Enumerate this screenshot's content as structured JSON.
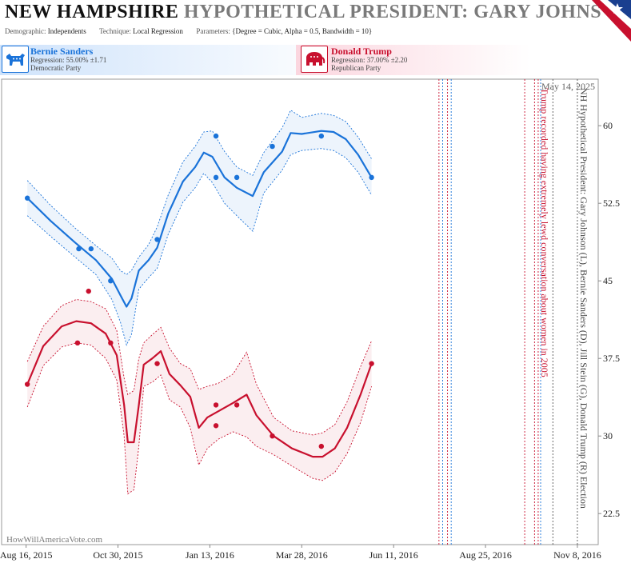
{
  "header": {
    "state": "NEW HAMPSHIRE",
    "title_rest": "HYPOTHETICAL PRESIDENT:  GARY JOHNSON",
    "params": {
      "demographic_label": "Demographic:",
      "demographic_value": "Independents",
      "technique_label": "Technique:",
      "technique_value": "Local Regression",
      "parameters_label": "Parameters:",
      "parameters_value": "{Degree = Cubic, Alpha = 0.5, Bandwidth = 10}"
    }
  },
  "candidates": {
    "dem": {
      "name": "Bernie Sanders",
      "regression": "Regression: 55.00% ±1.71",
      "party": "Democratic Party",
      "color": "#1a73d9"
    },
    "rep": {
      "name": "Donald Trump",
      "regression": "Regression: 37.00% ±2.20",
      "party": "Republican Party",
      "color": "#c8102e"
    }
  },
  "watermark": "HowWillAmericaVote.com",
  "chart_data": {
    "type": "line",
    "x_type": "date",
    "xlim": [
      "2015-07-27",
      "2016-11-25"
    ],
    "ylim": [
      19.5,
      64.5
    ],
    "x_ticks": [
      {
        "date": "2015-08-16",
        "label": "Aug 16, 2015"
      },
      {
        "date": "2015-10-30",
        "label": "Oct 30, 2015"
      },
      {
        "date": "2016-01-13",
        "label": "Jan 13, 2016"
      },
      {
        "date": "2016-03-28",
        "label": "Mar 28, 2016"
      },
      {
        "date": "2016-06-11",
        "label": "Jun 11, 2016"
      },
      {
        "date": "2016-08-25",
        "label": "Aug 25, 2016"
      },
      {
        "date": "2016-11-08",
        "label": "Nov 8, 2016"
      }
    ],
    "y_ticks": [
      {
        "value": 22.5,
        "label": "22.5"
      },
      {
        "value": 30,
        "label": "30"
      },
      {
        "value": 37.5,
        "label": "37.5"
      },
      {
        "value": 45,
        "label": "45"
      },
      {
        "value": 52.5,
        "label": "52.5"
      },
      {
        "value": 60,
        "label": "60"
      }
    ],
    "series": [
      {
        "name": "Bernie Sanders",
        "color": "#1a73d9",
        "fill": "rgba(26,115,217,0.08)",
        "points": [
          {
            "x": "2015-08-17",
            "y": 53.0
          },
          {
            "x": "2015-09-28",
            "y": 48.1
          },
          {
            "x": "2015-10-08",
            "y": 48.1
          },
          {
            "x": "2015-10-24",
            "y": 45.0
          },
          {
            "x": "2015-12-01",
            "y": 49.0
          },
          {
            "x": "2016-01-18",
            "y": 59.0
          },
          {
            "x": "2016-01-18",
            "y": 55.0
          },
          {
            "x": "2016-02-04",
            "y": 55.0
          },
          {
            "x": "2016-03-04",
            "y": 58.0
          },
          {
            "x": "2016-04-13",
            "y": 59.0
          },
          {
            "x": "2016-05-24",
            "y": 55.0
          }
        ],
        "trend": [
          {
            "x": "2015-08-17",
            "y": 53.0
          },
          {
            "x": "2015-09-05",
            "y": 50.8
          },
          {
            "x": "2015-09-25",
            "y": 48.7
          },
          {
            "x": "2015-10-12",
            "y": 47.0
          },
          {
            "x": "2015-10-25",
            "y": 45.2
          },
          {
            "x": "2015-11-01",
            "y": 43.6
          },
          {
            "x": "2015-11-06",
            "y": 42.5
          },
          {
            "x": "2015-11-10",
            "y": 43.3
          },
          {
            "x": "2015-11-16",
            "y": 46.0
          },
          {
            "x": "2015-11-24",
            "y": 47.0
          },
          {
            "x": "2015-12-01",
            "y": 48.2
          },
          {
            "x": "2015-12-10",
            "y": 51.5
          },
          {
            "x": "2015-12-22",
            "y": 54.6
          },
          {
            "x": "2016-01-01",
            "y": 56.0
          },
          {
            "x": "2016-01-08",
            "y": 57.4
          },
          {
            "x": "2016-01-15",
            "y": 57.0
          },
          {
            "x": "2016-01-25",
            "y": 55.0
          },
          {
            "x": "2016-02-04",
            "y": 54.0
          },
          {
            "x": "2016-02-17",
            "y": 53.2
          },
          {
            "x": "2016-02-26",
            "y": 55.5
          },
          {
            "x": "2016-03-12",
            "y": 57.5
          },
          {
            "x": "2016-03-19",
            "y": 59.3
          },
          {
            "x": "2016-03-28",
            "y": 59.2
          },
          {
            "x": "2016-04-13",
            "y": 59.5
          },
          {
            "x": "2016-04-23",
            "y": 59.4
          },
          {
            "x": "2016-05-03",
            "y": 58.7
          },
          {
            "x": "2016-05-13",
            "y": 57.2
          },
          {
            "x": "2016-05-24",
            "y": 55.0
          }
        ],
        "upper": [
          {
            "x": "2015-08-17",
            "y": 54.7
          },
          {
            "x": "2015-09-05",
            "y": 52.3
          },
          {
            "x": "2015-09-25",
            "y": 50.1
          },
          {
            "x": "2015-10-12",
            "y": 48.4
          },
          {
            "x": "2015-10-25",
            "y": 47.2
          },
          {
            "x": "2015-11-01",
            "y": 46.0
          },
          {
            "x": "2015-11-06",
            "y": 45.6
          },
          {
            "x": "2015-11-10",
            "y": 46.0
          },
          {
            "x": "2015-11-16",
            "y": 47.3
          },
          {
            "x": "2015-11-24",
            "y": 48.5
          },
          {
            "x": "2015-12-01",
            "y": 50.2
          },
          {
            "x": "2015-12-10",
            "y": 53.3
          },
          {
            "x": "2015-12-22",
            "y": 56.5
          },
          {
            "x": "2016-01-01",
            "y": 58.0
          },
          {
            "x": "2016-01-08",
            "y": 59.4
          },
          {
            "x": "2016-01-15",
            "y": 59.5
          },
          {
            "x": "2016-01-25",
            "y": 57.5
          },
          {
            "x": "2016-02-04",
            "y": 56.0
          },
          {
            "x": "2016-02-17",
            "y": 55.2
          },
          {
            "x": "2016-02-26",
            "y": 57.4
          },
          {
            "x": "2016-03-12",
            "y": 59.8
          },
          {
            "x": "2016-03-19",
            "y": 61.5
          },
          {
            "x": "2016-03-28",
            "y": 60.8
          },
          {
            "x": "2016-04-13",
            "y": 61.2
          },
          {
            "x": "2016-04-23",
            "y": 61.0
          },
          {
            "x": "2016-05-03",
            "y": 60.4
          },
          {
            "x": "2016-05-13",
            "y": 58.9
          },
          {
            "x": "2016-05-24",
            "y": 56.8
          }
        ],
        "lower": [
          {
            "x": "2015-08-17",
            "y": 51.3
          },
          {
            "x": "2015-09-05",
            "y": 49.3
          },
          {
            "x": "2015-09-25",
            "y": 47.3
          },
          {
            "x": "2015-10-12",
            "y": 45.6
          },
          {
            "x": "2015-10-25",
            "y": 43.2
          },
          {
            "x": "2015-11-01",
            "y": 41.0
          },
          {
            "x": "2015-11-06",
            "y": 38.8
          },
          {
            "x": "2015-11-10",
            "y": 39.8
          },
          {
            "x": "2015-11-16",
            "y": 44.2
          },
          {
            "x": "2015-11-24",
            "y": 45.3
          },
          {
            "x": "2015-12-01",
            "y": 46.2
          },
          {
            "x": "2015-12-10",
            "y": 49.5
          },
          {
            "x": "2015-12-22",
            "y": 52.6
          },
          {
            "x": "2016-01-01",
            "y": 54.0
          },
          {
            "x": "2016-01-08",
            "y": 55.4
          },
          {
            "x": "2016-01-15",
            "y": 54.5
          },
          {
            "x": "2016-01-25",
            "y": 52.5
          },
          {
            "x": "2016-02-04",
            "y": 51.3
          },
          {
            "x": "2016-02-17",
            "y": 49.8
          },
          {
            "x": "2016-02-26",
            "y": 53.5
          },
          {
            "x": "2016-03-12",
            "y": 55.7
          },
          {
            "x": "2016-03-19",
            "y": 57.2
          },
          {
            "x": "2016-03-28",
            "y": 57.6
          },
          {
            "x": "2016-04-13",
            "y": 57.8
          },
          {
            "x": "2016-04-23",
            "y": 57.6
          },
          {
            "x": "2016-05-03",
            "y": 56.9
          },
          {
            "x": "2016-05-13",
            "y": 55.5
          },
          {
            "x": "2016-05-24",
            "y": 53.3
          }
        ]
      },
      {
        "name": "Donald Trump",
        "color": "#c8102e",
        "fill": "rgba(200,16,46,0.07)",
        "points": [
          {
            "x": "2015-08-17",
            "y": 35.0
          },
          {
            "x": "2015-09-27",
            "y": 39.0
          },
          {
            "x": "2015-10-06",
            "y": 44.0
          },
          {
            "x": "2015-10-24",
            "y": 39.0
          },
          {
            "x": "2015-12-01",
            "y": 37.0
          },
          {
            "x": "2016-01-18",
            "y": 33.0
          },
          {
            "x": "2016-01-18",
            "y": 31.0
          },
          {
            "x": "2016-02-04",
            "y": 33.0
          },
          {
            "x": "2016-03-04",
            "y": 30.0
          },
          {
            "x": "2016-04-13",
            "y": 29.0
          },
          {
            "x": "2016-05-24",
            "y": 37.0
          }
        ],
        "trend": [
          {
            "x": "2015-08-17",
            "y": 35.0
          },
          {
            "x": "2015-08-30",
            "y": 38.7
          },
          {
            "x": "2015-09-14",
            "y": 40.6
          },
          {
            "x": "2015-09-26",
            "y": 41.1
          },
          {
            "x": "2015-10-08",
            "y": 40.9
          },
          {
            "x": "2015-10-20",
            "y": 39.9
          },
          {
            "x": "2015-10-29",
            "y": 37.8
          },
          {
            "x": "2015-11-04",
            "y": 33.0
          },
          {
            "x": "2015-11-07",
            "y": 29.4
          },
          {
            "x": "2015-11-12",
            "y": 29.4
          },
          {
            "x": "2015-11-16",
            "y": 33.0
          },
          {
            "x": "2015-11-20",
            "y": 36.9
          },
          {
            "x": "2015-11-27",
            "y": 37.5
          },
          {
            "x": "2015-12-04",
            "y": 38.2
          },
          {
            "x": "2015-12-11",
            "y": 36.0
          },
          {
            "x": "2015-12-20",
            "y": 34.9
          },
          {
            "x": "2015-12-28",
            "y": 33.8
          },
          {
            "x": "2016-01-04",
            "y": 30.8
          },
          {
            "x": "2016-01-11",
            "y": 31.8
          },
          {
            "x": "2016-01-20",
            "y": 32.4
          },
          {
            "x": "2016-02-01",
            "y": 33.2
          },
          {
            "x": "2016-02-12",
            "y": 34.0
          },
          {
            "x": "2016-02-20",
            "y": 32.0
          },
          {
            "x": "2016-03-05",
            "y": 30.0
          },
          {
            "x": "2016-03-20",
            "y": 28.8
          },
          {
            "x": "2016-04-06",
            "y": 28.0
          },
          {
            "x": "2016-04-14",
            "y": 28.0
          },
          {
            "x": "2016-04-24",
            "y": 28.8
          },
          {
            "x": "2016-05-04",
            "y": 30.8
          },
          {
            "x": "2016-05-15",
            "y": 34.0
          },
          {
            "x": "2016-05-24",
            "y": 37.0
          }
        ],
        "upper": [
          {
            "x": "2015-08-17",
            "y": 37.2
          },
          {
            "x": "2015-08-30",
            "y": 40.6
          },
          {
            "x": "2015-09-14",
            "y": 42.6
          },
          {
            "x": "2015-09-26",
            "y": 43.2
          },
          {
            "x": "2015-10-08",
            "y": 43.0
          },
          {
            "x": "2015-10-20",
            "y": 42.3
          },
          {
            "x": "2015-10-29",
            "y": 40.2
          },
          {
            "x": "2015-11-04",
            "y": 35.6
          },
          {
            "x": "2015-11-07",
            "y": 34.0
          },
          {
            "x": "2015-11-12",
            "y": 34.4
          },
          {
            "x": "2015-11-16",
            "y": 37.5
          },
          {
            "x": "2015-11-20",
            "y": 39.0
          },
          {
            "x": "2015-11-27",
            "y": 39.8
          },
          {
            "x": "2015-12-04",
            "y": 40.5
          },
          {
            "x": "2015-12-11",
            "y": 38.5
          },
          {
            "x": "2015-12-20",
            "y": 37.0
          },
          {
            "x": "2015-12-28",
            "y": 36.5
          },
          {
            "x": "2016-01-04",
            "y": 34.5
          },
          {
            "x": "2016-01-11",
            "y": 34.8
          },
          {
            "x": "2016-01-20",
            "y": 35.1
          },
          {
            "x": "2016-02-01",
            "y": 36.0
          },
          {
            "x": "2016-02-12",
            "y": 38.1
          },
          {
            "x": "2016-02-20",
            "y": 35.0
          },
          {
            "x": "2016-03-05",
            "y": 31.8
          },
          {
            "x": "2016-03-20",
            "y": 30.5
          },
          {
            "x": "2016-04-06",
            "y": 30.1
          },
          {
            "x": "2016-04-14",
            "y": 30.3
          },
          {
            "x": "2016-04-24",
            "y": 31.1
          },
          {
            "x": "2016-05-04",
            "y": 33.3
          },
          {
            "x": "2016-05-15",
            "y": 36.7
          },
          {
            "x": "2016-05-24",
            "y": 39.2
          }
        ],
        "lower": [
          {
            "x": "2015-08-17",
            "y": 32.8
          },
          {
            "x": "2015-08-30",
            "y": 36.8
          },
          {
            "x": "2015-09-14",
            "y": 38.6
          },
          {
            "x": "2015-09-26",
            "y": 39.0
          },
          {
            "x": "2015-10-08",
            "y": 38.8
          },
          {
            "x": "2015-10-20",
            "y": 37.5
          },
          {
            "x": "2015-10-29",
            "y": 35.4
          },
          {
            "x": "2015-11-04",
            "y": 30.0
          },
          {
            "x": "2015-11-07",
            "y": 24.4
          },
          {
            "x": "2015-11-12",
            "y": 24.8
          },
          {
            "x": "2015-11-16",
            "y": 29.0
          },
          {
            "x": "2015-11-20",
            "y": 34.8
          },
          {
            "x": "2015-11-27",
            "y": 35.2
          },
          {
            "x": "2015-12-04",
            "y": 35.9
          },
          {
            "x": "2015-12-11",
            "y": 33.5
          },
          {
            "x": "2015-12-20",
            "y": 32.8
          },
          {
            "x": "2015-12-28",
            "y": 30.8
          },
          {
            "x": "2016-01-04",
            "y": 27.2
          },
          {
            "x": "2016-01-11",
            "y": 28.8
          },
          {
            "x": "2016-01-20",
            "y": 29.7
          },
          {
            "x": "2016-02-01",
            "y": 30.4
          },
          {
            "x": "2016-02-12",
            "y": 29.9
          },
          {
            "x": "2016-02-20",
            "y": 29.0
          },
          {
            "x": "2016-03-05",
            "y": 28.2
          },
          {
            "x": "2016-03-20",
            "y": 27.1
          },
          {
            "x": "2016-04-06",
            "y": 25.9
          },
          {
            "x": "2016-04-14",
            "y": 25.7
          },
          {
            "x": "2016-04-24",
            "y": 26.5
          },
          {
            "x": "2016-05-04",
            "y": 28.3
          },
          {
            "x": "2016-05-15",
            "y": 31.3
          },
          {
            "x": "2016-05-24",
            "y": 34.8
          }
        ]
      }
    ],
    "event_lines": [
      {
        "date": "2016-07-18",
        "color": "#c8102e"
      },
      {
        "date": "2016-07-21",
        "color": "#1a73d9"
      },
      {
        "date": "2016-07-25",
        "color": "#c8102e"
      },
      {
        "date": "2016-07-28",
        "color": "#1a73d9"
      },
      {
        "date": "2016-09-26",
        "color": "#c8102e"
      },
      {
        "date": "2016-10-04",
        "color": "#c8102e"
      },
      {
        "date": "2016-10-07",
        "color": "#c8102e"
      },
      {
        "date": "2016-10-09",
        "color": "#1a73d9"
      },
      {
        "date": "2016-10-19",
        "color": "#555555"
      },
      {
        "date": "2016-11-08",
        "color": "#555555"
      }
    ],
    "annotations": [
      {
        "date": "2016-10-07",
        "text": "Trump recorded having extremely lewd conversation about women in 2005",
        "color": "#c8102e"
      },
      {
        "date": "2016-11-08",
        "text": "NH Hypothetical President: Gary Johnson (L), Bernie Sanders (D), Jill Stein (G), Donald Trump (R) Election",
        "color": "#444444"
      }
    ],
    "date_stamp": "May 14, 2025"
  }
}
